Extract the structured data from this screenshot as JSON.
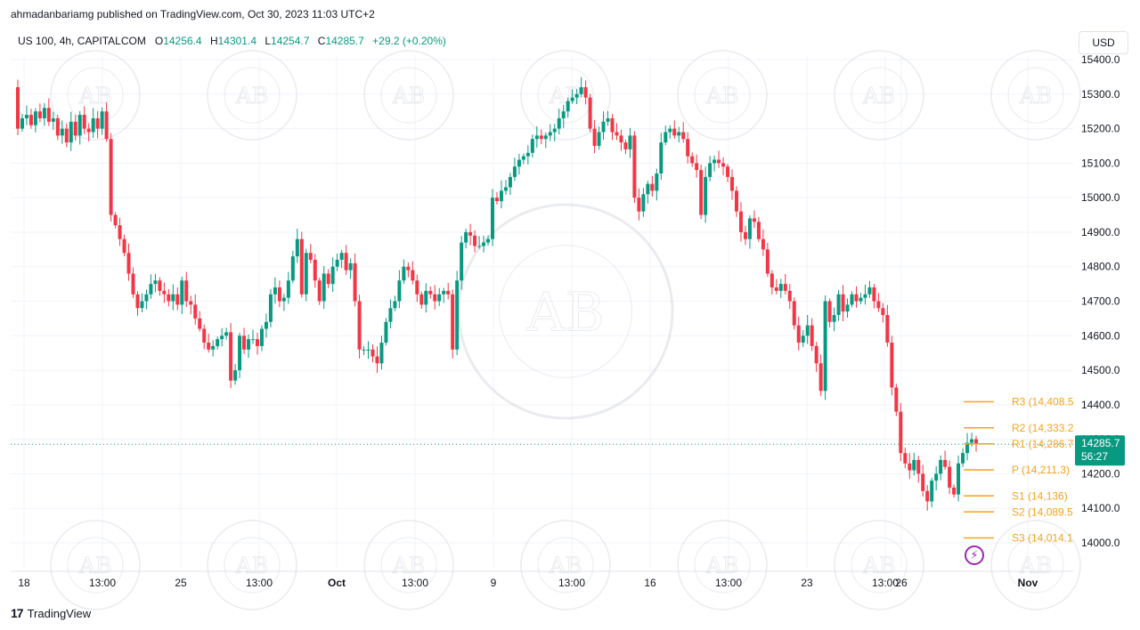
{
  "header": {
    "text": "ahmadanbariamg published on TradingView.com, Oct 30, 2023 11:03 UTC+2"
  },
  "legend": {
    "symbol": "US 100, 4h, CAPITALCOM",
    "open_label": "O",
    "open": "14256.4",
    "high_label": "H",
    "high": "14301.4",
    "low_label": "L",
    "low": "14254.7",
    "close_label": "C",
    "close": "14285.7",
    "change": "+29.2 (+0.20%)"
  },
  "currency": "USD",
  "footer": {
    "logo": "17",
    "brand": "TradingView"
  },
  "colors": {
    "up": "#089981",
    "down": "#f23645",
    "pivot": "#f7a21b",
    "last": "#089981",
    "watermark": "#d1d4dc"
  },
  "chart_data": {
    "type": "candlestick",
    "ylim": [
      13940,
      15440
    ],
    "y_ticks": [
      "15400.0",
      "15300.0",
      "15200.0",
      "15100.0",
      "15000.0",
      "14900.0",
      "14800.0",
      "14700.0",
      "14600.0",
      "14500.0",
      "14400.0",
      "14300.0",
      "14200.0",
      "14100.0",
      "14000.0"
    ],
    "x_ticks": [
      "18",
      "13:00",
      "25",
      "13:00",
      "Oct",
      "13:00",
      "9",
      "13:00",
      "16",
      "13:00",
      "23",
      "13:00",
      "26",
      "Nov"
    ],
    "last_price": "14285.7",
    "countdown": "56:27",
    "pivots": [
      {
        "label": "R3 (14,408.5",
        "value": 14408.5
      },
      {
        "label": "R2 (14,333.2",
        "value": 14333.2
      },
      {
        "label": "R1 (14,286.7",
        "value": 14286.7
      },
      {
        "label": "P (14,211.3)",
        "value": 14211.3
      },
      {
        "label": "S1 (14,136)",
        "value": 14136
      },
      {
        "label": "S2 (14,089.5",
        "value": 14089.5
      },
      {
        "label": "S3 (14,014.1",
        "value": 14014.1
      }
    ],
    "watermark": {
      "monogram": "AB",
      "arc": "ARABIAN BUSINESS ACADEMY"
    },
    "path": [
      15320,
      15200,
      15230,
      15240,
      15210,
      15250,
      15230,
      15260,
      15220,
      15230,
      15180,
      15200,
      15160,
      15220,
      15180,
      15240,
      15200,
      15190,
      15230,
      15200,
      15250,
      15170,
      14950,
      14920,
      14880,
      14840,
      14780,
      14720,
      14680,
      14700,
      14720,
      14750,
      14760,
      14730,
      14720,
      14700,
      14720,
      14690,
      14760,
      14700,
      14690,
      14650,
      14620,
      14580,
      14560,
      14570,
      14590,
      14600,
      14610,
      14470,
      14500,
      14600,
      14560,
      14590,
      14590,
      14570,
      14620,
      14640,
      14720,
      14740,
      14700,
      14710,
      14760,
      14830,
      14880,
      14720,
      14840,
      14820,
      14760,
      14700,
      14780,
      14750,
      14800,
      14820,
      14840,
      14790,
      14810,
      14700,
      14560,
      14560,
      14560,
      14540,
      14520,
      14580,
      14640,
      14680,
      14700,
      14760,
      14800,
      14790,
      14760,
      14720,
      14690,
      14730,
      14720,
      14700,
      14720,
      14730,
      14720,
      14560,
      14760,
      14870,
      14900,
      14890,
      14860,
      14860,
      14870,
      14880,
      15000,
      14990,
      15020,
      15030,
      15060,
      15090,
      15110,
      15120,
      15130,
      15170,
      15180,
      15170,
      15180,
      15190,
      15200,
      15230,
      15250,
      15280,
      15290,
      15300,
      15320,
      15290,
      15200,
      15150,
      15190,
      15220,
      15230,
      15190,
      15180,
      15160,
      15140,
      15180,
      15000,
      14960,
      15010,
      15040,
      15020,
      15070,
      15160,
      15190,
      15200,
      15180,
      15190,
      15170,
      15120,
      15100,
      15080,
      14950,
      15060,
      15100,
      15110,
      15100,
      15090,
      15060,
      15020,
      14960,
      14900,
      14880,
      14940,
      14930,
      14880,
      14850,
      14780,
      14740,
      14730,
      14750,
      14730,
      14700,
      14630,
      14580,
      14600,
      14630,
      14570,
      14520,
      14440,
      14700,
      14640,
      14660,
      14720,
      14670,
      14690,
      14720,
      14700,
      14710,
      14720,
      14740,
      14700,
      14680,
      14660,
      14580,
      14450,
      14380,
      14260,
      14230,
      14210,
      14240,
      14200,
      14150,
      14120,
      14180,
      14200,
      14240,
      14220,
      14160,
      14140,
      14230,
      14260,
      14290,
      14300,
      14286
    ]
  }
}
